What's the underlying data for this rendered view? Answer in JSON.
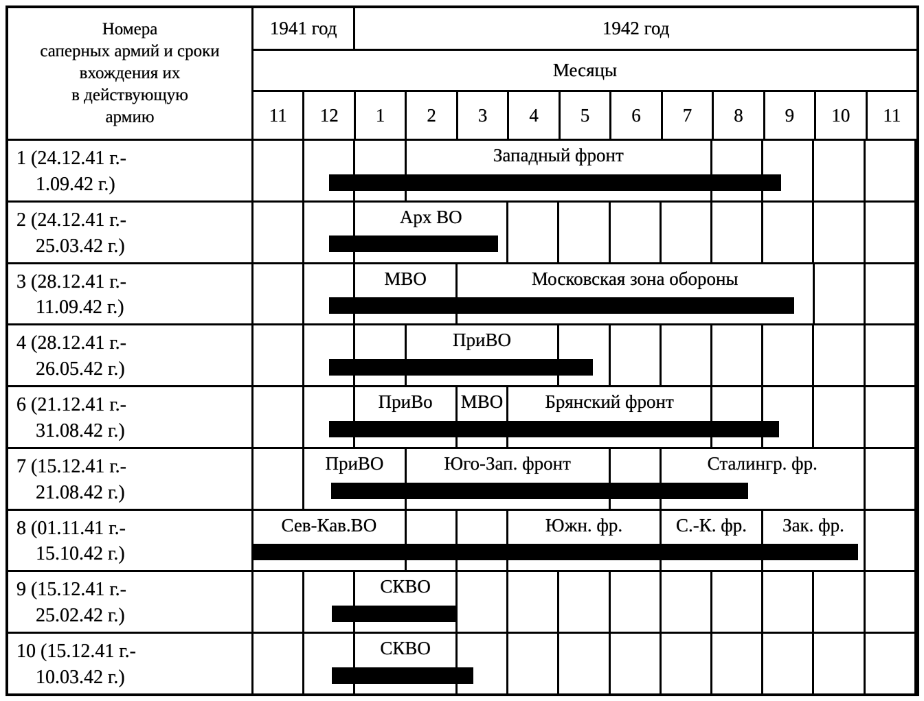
{
  "header": {
    "left_title": "Номера\nсаперных армий и сроки\nвхождения их\nв действующую\nармию",
    "year_1941": "1941 год",
    "year_1942": "1942 год",
    "months_label": "Месяцы",
    "months": [
      "11",
      "12",
      "1",
      "2",
      "3",
      "4",
      "5",
      "6",
      "7",
      "8",
      "9",
      "10",
      "11"
    ]
  },
  "rows": [
    {
      "army_label": "1 (24.12.41 г.-\n    1.09.42 г.)",
      "cells": [
        {
          "span": 1
        },
        {
          "span": 1
        },
        {
          "span": 1
        },
        {
          "span": 6,
          "label": "Западный фронт"
        },
        {
          "span": 1
        },
        {
          "span": 1
        },
        {
          "span": 1
        },
        {
          "span": 1
        }
      ],
      "bar": {
        "start_col": 1.48,
        "end_col": 10.35
      }
    },
    {
      "army_label": "2 (24.12.41 г.-\n    25.03.42 г.)",
      "cells": [
        {
          "span": 1
        },
        {
          "span": 1
        },
        {
          "span": 3,
          "label": "Арх ВО"
        },
        {
          "span": 1
        },
        {
          "span": 1
        },
        {
          "span": 1
        },
        {
          "span": 1
        },
        {
          "span": 1
        },
        {
          "span": 1
        },
        {
          "span": 1
        },
        {
          "span": 1
        }
      ],
      "bar": {
        "start_col": 1.48,
        "end_col": 4.8
      }
    },
    {
      "army_label": "3 (28.12.41 г.-\n    11.09.42 г.)",
      "cells": [
        {
          "span": 1
        },
        {
          "span": 1
        },
        {
          "span": 2,
          "label": "МВО"
        },
        {
          "span": 7,
          "label": "Московская зона обороны"
        },
        {
          "span": 1
        },
        {
          "span": 1
        }
      ],
      "bar": {
        "start_col": 1.48,
        "end_col": 10.6
      }
    },
    {
      "army_label": "4 (28.12.41 г.-\n    26.05.42 г.)",
      "cells": [
        {
          "span": 1
        },
        {
          "span": 1
        },
        {
          "span": 1
        },
        {
          "span": 3,
          "label": "ПриВО"
        },
        {
          "span": 1
        },
        {
          "span": 1
        },
        {
          "span": 1
        },
        {
          "span": 1
        },
        {
          "span": 1
        },
        {
          "span": 1
        },
        {
          "span": 1
        }
      ],
      "bar": {
        "start_col": 1.48,
        "end_col": 6.65
      }
    },
    {
      "army_label": "6 (21.12.41 г.-\n    31.08.42 г.)",
      "cells": [
        {
          "span": 1
        },
        {
          "span": 1
        },
        {
          "span": 2,
          "label": "ПриВо"
        },
        {
          "span": 1,
          "label": "МВО"
        },
        {
          "span": 4,
          "label": "Брянский фронт"
        },
        {
          "span": 1
        },
        {
          "span": 1
        },
        {
          "span": 1
        },
        {
          "span": 1
        }
      ],
      "bar": {
        "start_col": 1.48,
        "end_col": 10.3
      }
    },
    {
      "army_label": "7 (15.12.41 г.-\n    21.08.42 г.)",
      "cells": [
        {
          "span": 1
        },
        {
          "span": 2,
          "label": "ПриВО"
        },
        {
          "span": 4,
          "label": "Юго-Зап. фронт"
        },
        {
          "span": 1
        },
        {
          "span": 4,
          "label": "Сталингр. фр."
        },
        {
          "span": 1
        }
      ],
      "bar": {
        "start_col": 1.52,
        "end_col": 9.7
      }
    },
    {
      "army_label": "8 (01.11.41 г.-\n    15.10.42 г.)",
      "cells": [
        {
          "span": 3,
          "label": "Сев-Кав.ВО"
        },
        {
          "span": 1
        },
        {
          "span": 1
        },
        {
          "span": 3,
          "label": "Южн. фр."
        },
        {
          "span": 2,
          "label": "С.-К. фр."
        },
        {
          "span": 2,
          "label": "Зак. фр."
        },
        {
          "span": 1
        }
      ],
      "bar": {
        "start_col": 0,
        "end_col": 11.85
      }
    },
    {
      "army_label": "9 (15.12.41 г.-\n    25.02.42 г.)",
      "cells": [
        {
          "span": 1
        },
        {
          "span": 1
        },
        {
          "span": 2,
          "label": "СКВО"
        },
        {
          "span": 1
        },
        {
          "span": 1
        },
        {
          "span": 1
        },
        {
          "span": 1
        },
        {
          "span": 1
        },
        {
          "span": 1
        },
        {
          "span": 1
        },
        {
          "span": 1
        },
        {
          "span": 1
        }
      ],
      "bar": {
        "start_col": 1.53,
        "end_col": 3.97
      }
    },
    {
      "army_label": "10 (15.12.41 г.-\n    10.03.42 г.)",
      "cells": [
        {
          "span": 1
        },
        {
          "span": 1
        },
        {
          "span": 2,
          "label": "СКВО"
        },
        {
          "span": 1
        },
        {
          "span": 1
        },
        {
          "span": 1
        },
        {
          "span": 1
        },
        {
          "span": 1
        },
        {
          "span": 1
        },
        {
          "span": 1
        },
        {
          "span": 1
        },
        {
          "span": 1
        }
      ],
      "bar": {
        "start_col": 1.53,
        "end_col": 4.31
      }
    }
  ],
  "chart_data": {
    "type": "bar",
    "subtype": "gantt-table",
    "title": "Номера саперных армий и сроки вхождения их в действующую армию",
    "x_axis_label": "Месяцы",
    "year_groups": [
      {
        "label": "1941 год",
        "month_columns": [
          "11",
          "12"
        ]
      },
      {
        "label": "1942 год",
        "month_columns": [
          "1",
          "2",
          "3",
          "4",
          "5",
          "6",
          "7",
          "8",
          "9",
          "10",
          "11"
        ]
      }
    ],
    "month_columns": [
      "11",
      "12",
      "1",
      "2",
      "3",
      "4",
      "5",
      "6",
      "7",
      "8",
      "9",
      "10",
      "11"
    ],
    "bars": [
      {
        "army": "1",
        "service_period": "24.12.41 г. - 1.09.42 г.",
        "bar_span_columns": [
          1.48,
          10.35
        ],
        "assignments": [
          {
            "label": "Западный фронт",
            "months": [
              "2",
              "3",
              "4",
              "5",
              "6",
              "7"
            ]
          }
        ]
      },
      {
        "army": "2",
        "service_period": "24.12.41 г. - 25.03.42 г.",
        "bar_span_columns": [
          1.48,
          4.8
        ],
        "assignments": [
          {
            "label": "Арх ВО",
            "months": [
              "1",
              "2",
              "3"
            ]
          }
        ]
      },
      {
        "army": "3",
        "service_period": "28.12.41 г. - 11.09.42 г.",
        "bar_span_columns": [
          1.48,
          10.6
        ],
        "assignments": [
          {
            "label": "МВО",
            "months": [
              "1",
              "2"
            ]
          },
          {
            "label": "Московская зона обороны",
            "months": [
              "3",
              "4",
              "5",
              "6",
              "7",
              "8",
              "9"
            ]
          }
        ]
      },
      {
        "army": "4",
        "service_period": "28.12.41 г. - 26.05.42 г.",
        "bar_span_columns": [
          1.48,
          6.65
        ],
        "assignments": [
          {
            "label": "ПриВО",
            "months": [
              "2",
              "3",
              "4"
            ]
          }
        ]
      },
      {
        "army": "6",
        "service_period": "21.12.41 г. - 31.08.42 г.",
        "bar_span_columns": [
          1.48,
          10.3
        ],
        "assignments": [
          {
            "label": "ПриВо",
            "months": [
              "1",
              "2"
            ]
          },
          {
            "label": "МВО",
            "months": [
              "3"
            ]
          },
          {
            "label": "Брянский фронт",
            "months": [
              "4",
              "5",
              "6",
              "7"
            ]
          }
        ]
      },
      {
        "army": "7",
        "service_period": "15.12.41 г. - 21.08.42 г.",
        "bar_span_columns": [
          1.52,
          9.7
        ],
        "assignments": [
          {
            "label": "ПриВО",
            "months": [
              "12",
              "1"
            ]
          },
          {
            "label": "Юго-Зап. фронт",
            "months": [
              "2",
              "3",
              "4",
              "5"
            ]
          },
          {
            "label": "Сталингр. фр.",
            "months": [
              "7",
              "8",
              "9",
              "10"
            ]
          }
        ]
      },
      {
        "army": "8",
        "service_period": "01.11.41 г. - 15.10.42 г.",
        "bar_span_columns": [
          0,
          11.85
        ],
        "assignments": [
          {
            "label": "Сев-Кав.ВО",
            "months": [
              "11",
              "12",
              "1"
            ]
          },
          {
            "label": "Южн. фр.",
            "months": [
              "4",
              "5",
              "6"
            ]
          },
          {
            "label": "С.-К. фр.",
            "months": [
              "7",
              "8"
            ]
          },
          {
            "label": "Зак. фр.",
            "months": [
              "9",
              "10"
            ]
          }
        ]
      },
      {
        "army": "9",
        "service_period": "15.12.41 г. - 25.02.42 г.",
        "bar_span_columns": [
          1.53,
          3.97
        ],
        "assignments": [
          {
            "label": "СКВО",
            "months": [
              "1",
              "2"
            ]
          }
        ]
      },
      {
        "army": "10",
        "service_period": "15.12.41 г. - 10.03.42 г.",
        "bar_span_columns": [
          1.53,
          4.31
        ],
        "assignments": [
          {
            "label": "СКВО",
            "months": [
              "1",
              "2"
            ]
          }
        ]
      }
    ]
  }
}
